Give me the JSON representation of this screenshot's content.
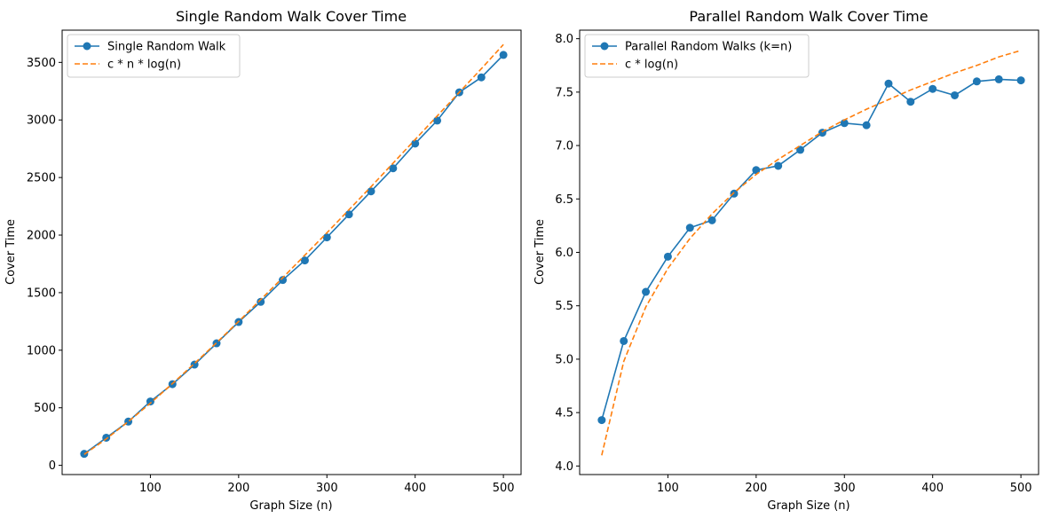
{
  "chart_data": [
    {
      "type": "line",
      "title": "Single Random Walk Cover Time",
      "xlabel": "Graph Size (n)",
      "ylabel": "Cover Time",
      "xlim": [
        0,
        520
      ],
      "ylim": [
        -80,
        3780
      ],
      "xticks": [
        100,
        200,
        300,
        400,
        500
      ],
      "yticks": [
        0,
        500,
        1000,
        1500,
        2000,
        2500,
        3000,
        3500
      ],
      "grid": false,
      "legend": "upper left",
      "series": [
        {
          "name": "Single Random Walk",
          "style": "solid-marker",
          "color": "#1f77b4",
          "x": [
            25,
            50,
            75,
            100,
            125,
            150,
            175,
            200,
            225,
            250,
            275,
            300,
            325,
            350,
            375,
            400,
            425,
            450,
            475,
            500
          ],
          "y": [
            100,
            240,
            380,
            555,
            705,
            875,
            1060,
            1245,
            1420,
            1610,
            1780,
            1980,
            2180,
            2380,
            2580,
            2795,
            2995,
            3240,
            3370,
            3565
          ]
        },
        {
          "name": "c * n * log(n)",
          "style": "dashed",
          "color": "#ff7f0e",
          "x": [
            25,
            50,
            75,
            100,
            125,
            150,
            175,
            200,
            225,
            250,
            275,
            300,
            325,
            350,
            375,
            400,
            425,
            450,
            475,
            500
          ],
          "y": [
            95,
            230,
            380,
            540,
            710,
            885,
            1065,
            1250,
            1440,
            1630,
            1825,
            2020,
            2220,
            2420,
            2625,
            2830,
            3035,
            3240,
            3445,
            3655
          ]
        }
      ]
    },
    {
      "type": "line",
      "title": "Parallel Random Walk Cover Time",
      "xlabel": "Graph Size (n)",
      "ylabel": "Cover Time",
      "xlim": [
        0,
        520
      ],
      "ylim": [
        3.92,
        8.08
      ],
      "xticks": [
        100,
        200,
        300,
        400,
        500
      ],
      "yticks": [
        4.0,
        4.5,
        5.0,
        5.5,
        6.0,
        6.5,
        7.0,
        7.5,
        8.0
      ],
      "ytick_labels": [
        "4.0",
        "4.5",
        "5.0",
        "5.5",
        "6.0",
        "6.5",
        "7.0",
        "7.5",
        "8.0"
      ],
      "grid": false,
      "legend": "upper left",
      "series": [
        {
          "name": "Parallel Random Walks (k=n)",
          "style": "solid-marker",
          "color": "#1f77b4",
          "x": [
            25,
            50,
            75,
            100,
            125,
            150,
            175,
            200,
            225,
            250,
            275,
            300,
            325,
            350,
            375,
            400,
            425,
            450,
            475,
            500
          ],
          "y": [
            4.43,
            5.17,
            5.63,
            5.96,
            6.23,
            6.3,
            6.55,
            6.77,
            6.81,
            6.96,
            7.12,
            7.21,
            7.19,
            7.58,
            7.41,
            7.53,
            7.47,
            7.6,
            7.62,
            7.61
          ]
        },
        {
          "name": "c * log(n)",
          "style": "dashed",
          "color": "#ff7f0e",
          "x": [
            25,
            50,
            75,
            100,
            125,
            150,
            175,
            200,
            225,
            250,
            275,
            300,
            325,
            350,
            375,
            400,
            425,
            450,
            475,
            500
          ],
          "y": [
            4.1,
            4.98,
            5.49,
            5.85,
            6.13,
            6.36,
            6.56,
            6.73,
            6.87,
            7.0,
            7.13,
            7.24,
            7.34,
            7.43,
            7.52,
            7.6,
            7.68,
            7.75,
            7.83,
            7.89
          ]
        }
      ]
    }
  ]
}
